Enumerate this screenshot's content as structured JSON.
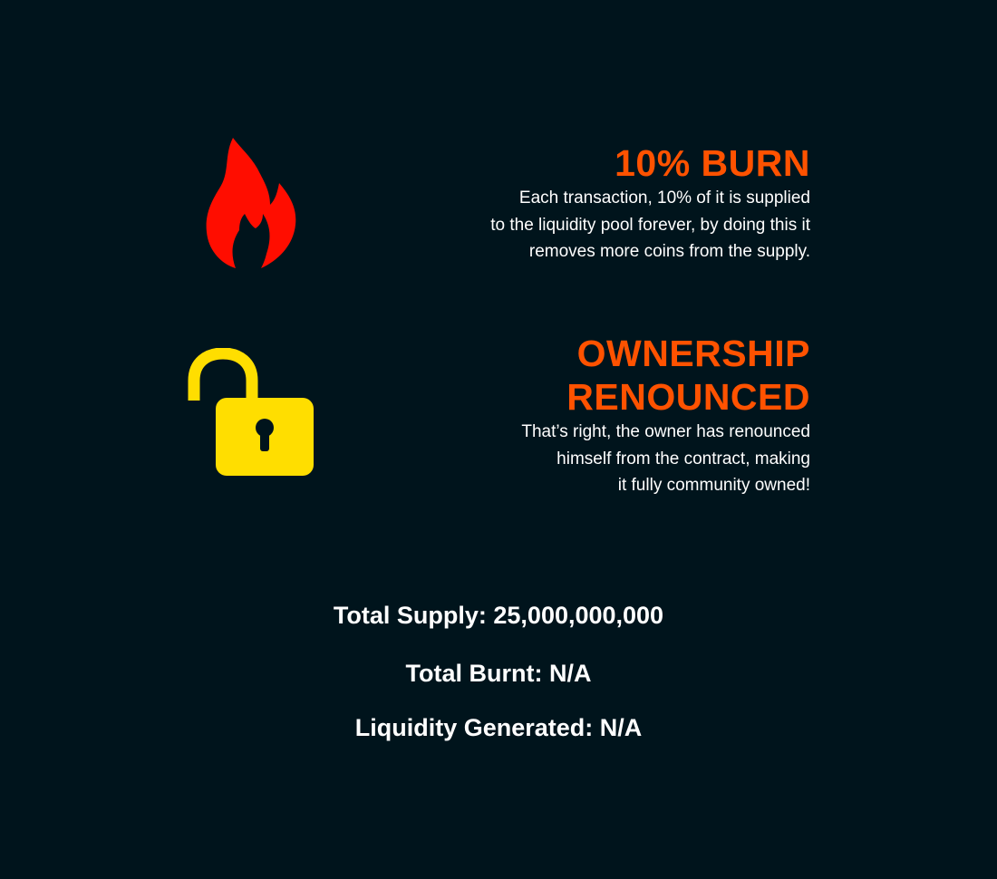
{
  "features": {
    "burn": {
      "icon": "fire-icon",
      "icon_color": "#ff0d00",
      "title": "10% BURN",
      "description": "Each transaction, 10% of it is supplied\nto the liquidity pool forever, by doing this it\nremoves more coins from the supply."
    },
    "ownership": {
      "icon": "unlocked-padlock-icon",
      "icon_color": "#ffde00",
      "title_line1": "OWNERSHIP",
      "title_line2": "RENOUNCED",
      "description": "That’s right, the owner has renounced\nhimself from the contract, making\nit fully community owned!"
    }
  },
  "stats": {
    "total_supply": "Total Supply: 25,000,000,000",
    "total_burnt": "Total Burnt: N/A",
    "liquidity_generated": "Liquidity Generated: N/A"
  },
  "colors": {
    "background": "#00141c",
    "accent": "#ff5200",
    "text": "#ffffff"
  }
}
